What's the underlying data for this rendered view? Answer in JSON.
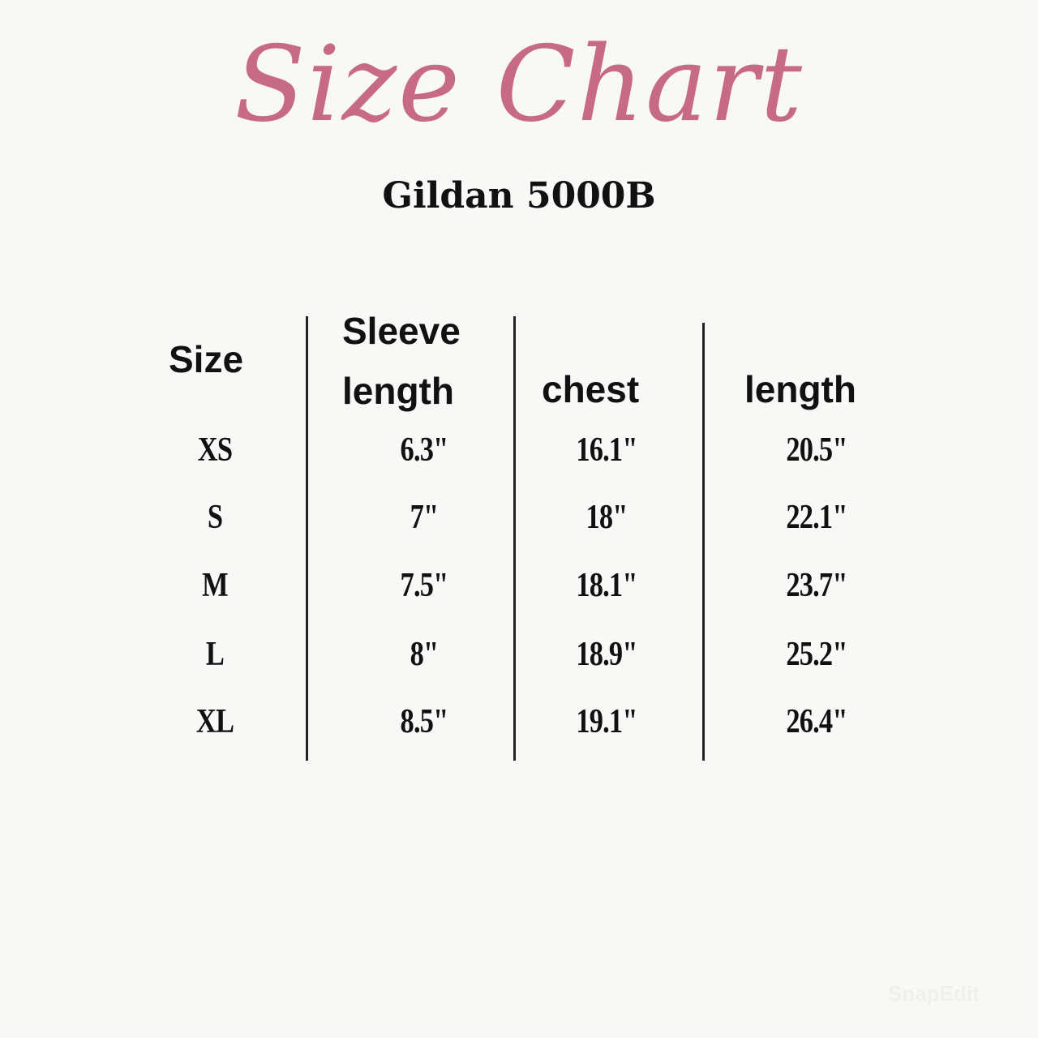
{
  "title": "Size Chart",
  "subtitle": "Gildan 5000B",
  "colors": {
    "title": "#c76a86",
    "background": "#f8f8f6",
    "text": "#111111"
  },
  "table": {
    "headers": {
      "size": "Size",
      "sleeve_line1": "Sleeve",
      "sleeve_line2": "length",
      "chest": "chest",
      "length": "length"
    },
    "rows": [
      {
        "size": "XS",
        "sleeve": "6.3\"",
        "chest": "16.1\"",
        "length": "20.5\""
      },
      {
        "size": "S",
        "sleeve": "7\"",
        "chest": "18\"",
        "length": "22.1\""
      },
      {
        "size": "M",
        "sleeve": "7.5\"",
        "chest": "18.1\"",
        "length": "23.7\""
      },
      {
        "size": "L",
        "sleeve": "8\"",
        "chest": "18.9\"",
        "length": "25.2\""
      },
      {
        "size": "XL",
        "sleeve": "8.5\"",
        "chest": "19.1\"",
        "length": "26.4\""
      }
    ]
  },
  "watermark": "SnapEdit"
}
